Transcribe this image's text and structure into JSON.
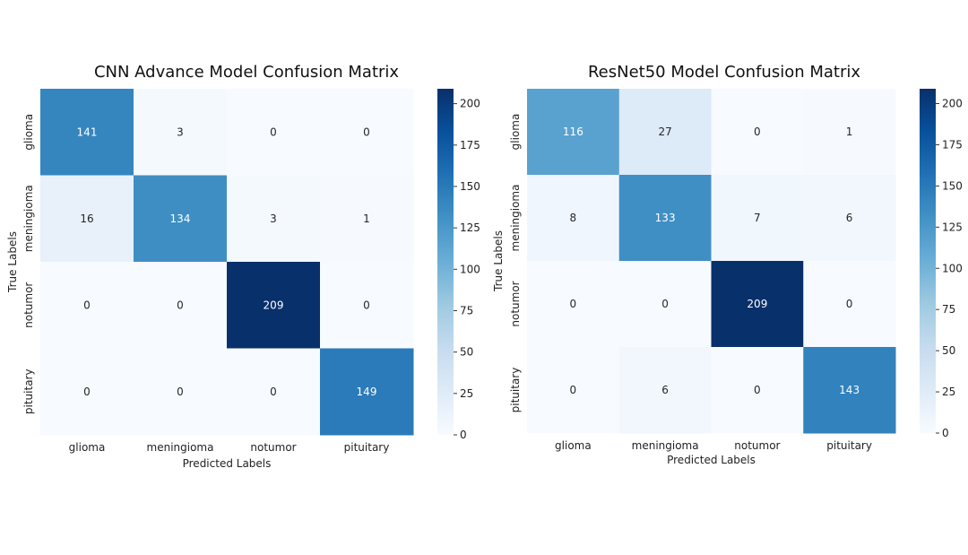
{
  "chart_data": [
    {
      "type": "heatmap",
      "title": "CNN Advance Model Confusion Matrix",
      "xlabel": "Predicted Labels",
      "ylabel": "True Labels",
      "x_categories": [
        "glioma",
        "meningioma",
        "notumor",
        "pituitary"
      ],
      "y_categories": [
        "glioma",
        "meningioma",
        "notumor",
        "pituitary"
      ],
      "values": [
        [
          141,
          3,
          0,
          0
        ],
        [
          16,
          134,
          3,
          1
        ],
        [
          0,
          0,
          209,
          0
        ],
        [
          0,
          0,
          0,
          149
        ]
      ],
      "colorbar": {
        "min": 0,
        "max": 209,
        "ticks": [
          0,
          25,
          50,
          75,
          100,
          125,
          150,
          175,
          200
        ]
      },
      "colormap": "Blues"
    },
    {
      "type": "heatmap",
      "title": "ResNet50 Model Confusion Matrix",
      "xlabel": "Predicted Labels",
      "ylabel": "True Labels",
      "x_categories": [
        "glioma",
        "meningioma",
        "notumor",
        "pituitary"
      ],
      "y_categories": [
        "glioma",
        "meningioma",
        "notumor",
        "pituitary"
      ],
      "values": [
        [
          116,
          27,
          0,
          1
        ],
        [
          8,
          133,
          7,
          6
        ],
        [
          0,
          0,
          209,
          0
        ],
        [
          0,
          6,
          0,
          143
        ]
      ],
      "colorbar": {
        "min": 0,
        "max": 209,
        "ticks": [
          0,
          25,
          50,
          75,
          100,
          125,
          150,
          175,
          200
        ]
      },
      "colormap": "Blues"
    }
  ]
}
